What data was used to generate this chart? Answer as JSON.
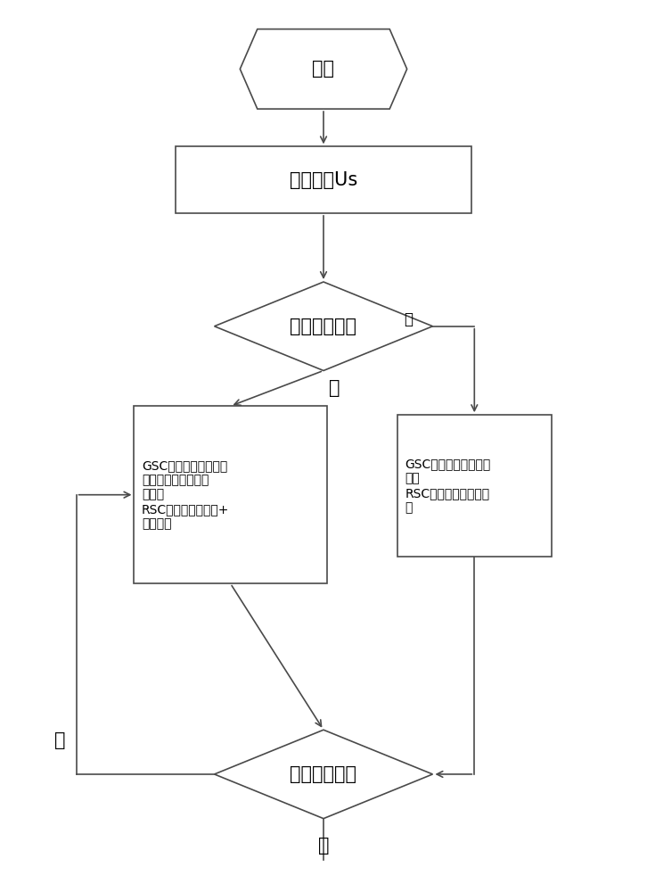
{
  "bg_color": "#ffffff",
  "line_color": "#4a4a4a",
  "fill_color": "#ffffff",
  "font_color": "#000000",
  "start_label": "开始",
  "detect_label": "实时检测Us",
  "diamond1_label": "高电压故障？",
  "diamond2_label": "高电压故障？",
  "act_yes_label": "GSC：优先控制母线电\n压，并吸收部分无功\n功率；\nRSC：无功支持模式+\n灭磁模式",
  "act_no_label": "GSC：单位功率因数控\n制；\nRSC：最大功率追踪模\n式",
  "label_no1": "否",
  "label_yes1": "是",
  "label_yes2": "是",
  "label_no2": "否"
}
